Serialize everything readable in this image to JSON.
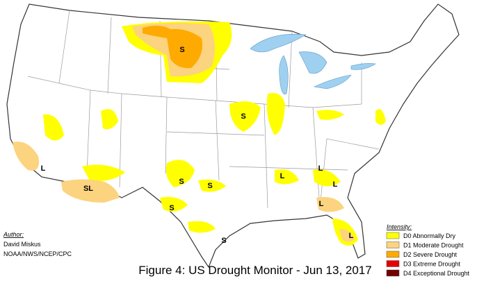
{
  "author": {
    "heading": "Author:",
    "name": "David Miskus",
    "org": "NOAA/NWS/NCEP/CPC"
  },
  "caption": "Figure 4: US Drought Monitor - Jun 13, 2017",
  "legend": {
    "title": "Intensity:",
    "items": [
      {
        "label": "D0 Abnormally Dry",
        "color": "#ffff00"
      },
      {
        "label": "D1 Moderate Drought",
        "color": "#fcd37f"
      },
      {
        "label": "D2 Severe Drought",
        "color": "#ffaa00"
      },
      {
        "label": "D3 Extreme Drought",
        "color": "#e60000"
      },
      {
        "label": "D4 Exceptional Drought",
        "color": "#730000"
      }
    ]
  },
  "map_labels": [
    "S",
    "S",
    "L",
    "SL",
    "S",
    "S",
    "S",
    "S",
    "L",
    "L",
    "L",
    "L",
    "L"
  ]
}
